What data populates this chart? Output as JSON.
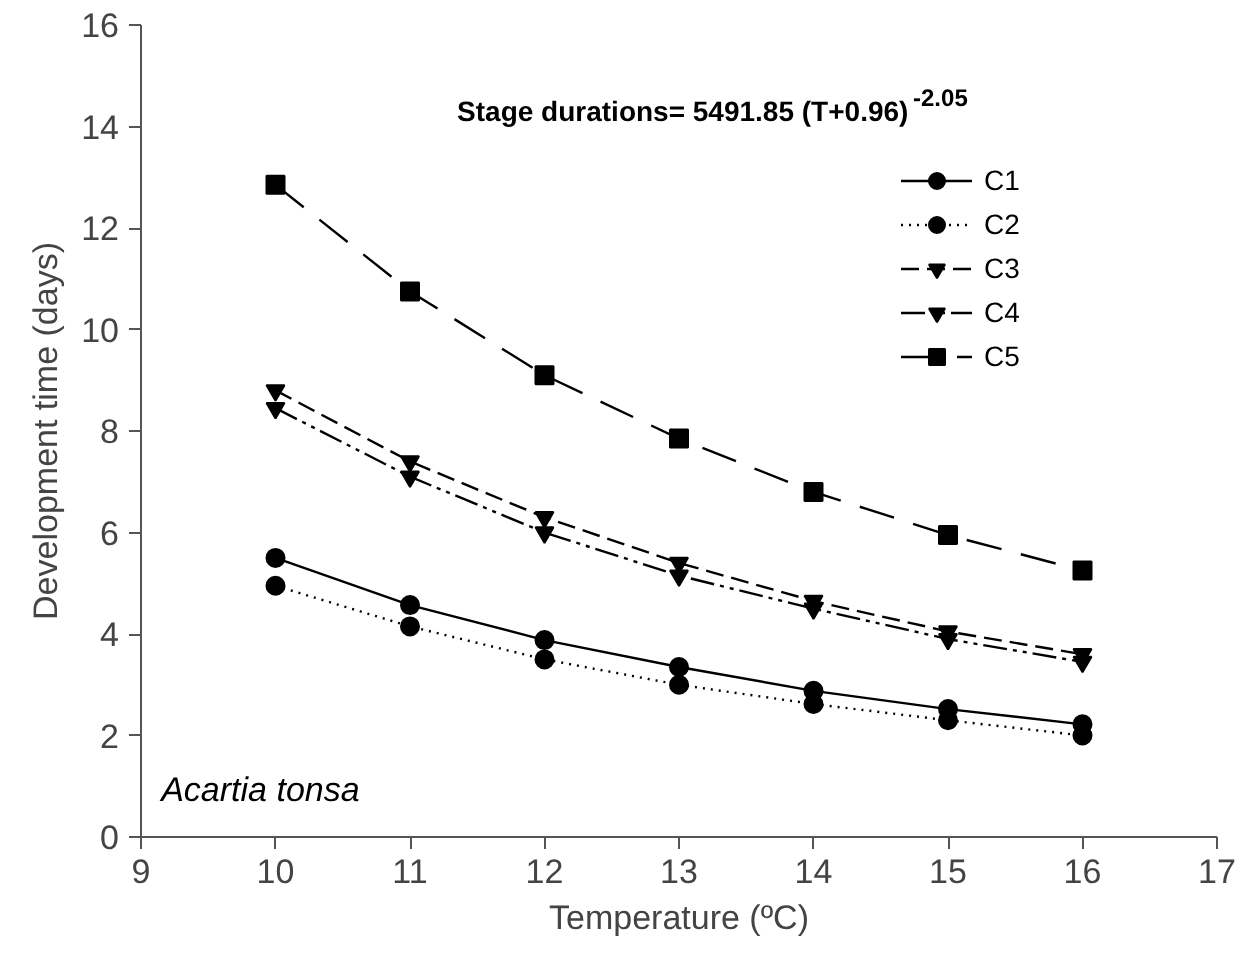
{
  "chart_data": {
    "type": "line",
    "xlabel": "Temperature (ºC)",
    "ylabel": "Development time (days)",
    "x": [
      10,
      11,
      12,
      13,
      14,
      15,
      16
    ],
    "series": [
      {
        "name": "C1",
        "color": "#000000",
        "marker": "circle",
        "line_style": "solid",
        "values": [
          5.5,
          4.57,
          3.88,
          3.35,
          2.88,
          2.52,
          2.22
        ]
      },
      {
        "name": "C2",
        "color": "#000000",
        "marker": "circle",
        "line_style": "dotted",
        "values": [
          4.95,
          4.15,
          3.5,
          3.0,
          2.62,
          2.3,
          2.0
        ]
      },
      {
        "name": "C3",
        "color": "#000000",
        "marker": "triangle",
        "line_style": "dashed",
        "values": [
          8.8,
          7.4,
          6.3,
          5.4,
          4.65,
          4.05,
          3.6
        ]
      },
      {
        "name": "C4",
        "color": "#000000",
        "marker": "triangle",
        "line_style": "dashdotdot",
        "values": [
          8.45,
          7.1,
          6.0,
          5.15,
          4.5,
          3.9,
          3.45
        ]
      },
      {
        "name": "C5",
        "color": "#000000",
        "marker": "square",
        "line_style": "longdash",
        "values": [
          12.85,
          10.75,
          9.1,
          7.85,
          6.8,
          5.95,
          5.25
        ]
      }
    ],
    "xlim": [
      9,
      17
    ],
    "xticks": [
      9,
      10,
      11,
      12,
      13,
      14,
      15,
      16,
      17
    ],
    "ylim": [
      0,
      16
    ],
    "yticks": [
      0,
      2,
      4,
      6,
      8,
      10,
      12,
      14,
      16
    ],
    "grid": false,
    "legend": "top right",
    "annotations": [
      "Stage durations= 5491.85 (T+0.96)$^{-2.05}$",
      "Acartia tonsa"
    ]
  }
}
